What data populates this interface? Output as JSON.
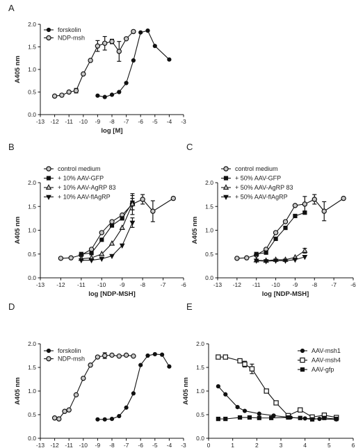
{
  "chart_data": [
    {
      "panel": "A",
      "type": "line",
      "xlabel": "log [M]",
      "ylabel": "A405 nm",
      "xlim": [
        -13,
        -3
      ],
      "ylim": [
        0,
        2.0
      ],
      "xticks": [
        "-13",
        "-12",
        "-11",
        "-10",
        "-9",
        "-8",
        "-7",
        "-6",
        "-5",
        "-4",
        "-3"
      ],
      "yticks": [
        "0.0",
        "0.5",
        "1.0",
        "1.5",
        "2.0"
      ],
      "legend_position": "top-left",
      "series": [
        {
          "name": "forskolin",
          "marker": "filled-circle",
          "x": [
            -9.0,
            -8.5,
            -8.0,
            -7.5,
            -7.0,
            -6.5,
            -6.0,
            -5.5,
            -5.0,
            -4.0
          ],
          "y": [
            0.42,
            0.39,
            0.44,
            0.5,
            0.7,
            1.2,
            1.82,
            1.86,
            1.52,
            1.22
          ],
          "err": [
            0,
            0,
            0,
            0,
            0,
            0,
            0,
            0,
            0,
            0
          ]
        },
        {
          "name": "NDP-msh",
          "marker": "open-circle",
          "x": [
            -12.0,
            -11.5,
            -11.0,
            -10.5,
            -10.0,
            -9.5,
            -9.0,
            -8.5,
            -8.0,
            -7.5,
            -7.0,
            -6.5
          ],
          "y": [
            0.41,
            0.43,
            0.5,
            0.53,
            0.9,
            1.2,
            1.52,
            1.58,
            1.62,
            1.4,
            1.68,
            1.84
          ],
          "err": [
            0,
            0,
            0,
            0.05,
            0,
            0,
            0.12,
            0.15,
            0.05,
            0.22,
            0,
            0
          ]
        }
      ]
    },
    {
      "panel": "B",
      "type": "line",
      "xlabel": "log [NDP-MSH]",
      "ylabel": "A405 nm",
      "xlim": [
        -13,
        -6
      ],
      "ylim": [
        0,
        2.0
      ],
      "xticks": [
        "-13",
        "-12",
        "-11",
        "-10",
        "-9",
        "-8",
        "-7",
        "-6"
      ],
      "yticks": [
        "0.0",
        "0.5",
        "1.0",
        "1.5",
        "2.0"
      ],
      "legend_position": "top-left",
      "series": [
        {
          "name": "control medium",
          "marker": "open-circle",
          "x": [
            -12.0,
            -11.5,
            -11.0,
            -10.5,
            -10.0,
            -9.5,
            -9.0,
            -8.5,
            -8.0,
            -7.5,
            -6.5
          ],
          "y": [
            0.41,
            0.42,
            0.48,
            0.6,
            0.95,
            1.18,
            1.32,
            1.55,
            1.65,
            1.4,
            1.67
          ],
          "err": [
            0,
            0,
            0,
            0,
            0,
            0,
            0,
            0.12,
            0.1,
            0.22,
            0
          ]
        },
        {
          "name": "+ 10% AAV-GFP",
          "marker": "filled-square",
          "x": [
            -11.0,
            -10.5,
            -10.0,
            -9.5,
            -9.0,
            -8.5
          ],
          "y": [
            0.5,
            0.52,
            0.8,
            1.1,
            1.25,
            1.58
          ],
          "err": [
            0,
            0,
            0,
            0,
            0,
            0.15
          ]
        },
        {
          "name": "+ 10% AAV-AgRP 83",
          "marker": "open-triangle",
          "x": [
            -11.0,
            -10.5,
            -10.0,
            -9.5,
            -9.0,
            -8.5
          ],
          "y": [
            0.4,
            0.42,
            0.5,
            0.72,
            1.05,
            1.55
          ],
          "err": [
            0,
            0,
            0,
            0,
            0,
            0.22
          ]
        },
        {
          "name": "+ 10% AAV-flAgRP",
          "marker": "filled-triangle-down",
          "x": [
            -11.0,
            -10.5,
            -10.0,
            -9.5,
            -9.0,
            -8.5
          ],
          "y": [
            0.37,
            0.37,
            0.4,
            0.46,
            0.68,
            1.16
          ],
          "err": [
            0,
            0,
            0,
            0,
            0,
            0.1
          ]
        }
      ]
    },
    {
      "panel": "C",
      "type": "line",
      "xlabel": "log [NDP-MSH]",
      "ylabel": "A405 nm",
      "xlim": [
        -13,
        -6
      ],
      "ylim": [
        0,
        2.0
      ],
      "xticks": [
        "-13",
        "-12",
        "-11",
        "-10",
        "-9",
        "-8",
        "-7",
        "-6"
      ],
      "yticks": [
        "0.0",
        "0.5",
        "1.0",
        "1.5",
        "2.0"
      ],
      "legend_position": "top-left",
      "series": [
        {
          "name": "control medium",
          "marker": "open-circle",
          "x": [
            -12.0,
            -11.5,
            -11.0,
            -10.5,
            -10.0,
            -9.5,
            -9.0,
            -8.5,
            -8.0,
            -7.5,
            -6.5
          ],
          "y": [
            0.41,
            0.42,
            0.48,
            0.6,
            0.95,
            1.18,
            1.52,
            1.55,
            1.65,
            1.4,
            1.67
          ],
          "err": [
            0,
            0,
            0,
            0,
            0,
            0,
            0,
            0.16,
            0.1,
            0.2,
            0
          ]
        },
        {
          "name": "+ 50% AAV-GFP",
          "marker": "filled-square",
          "x": [
            -11.0,
            -10.5,
            -10.0,
            -9.5,
            -9.0,
            -8.5
          ],
          "y": [
            0.5,
            0.53,
            0.82,
            1.05,
            1.3,
            1.37
          ],
          "err": [
            0,
            0,
            0,
            0,
            0,
            0
          ]
        },
        {
          "name": "+ 50% AAV-AgRP 83",
          "marker": "open-triangle",
          "x": [
            -11.0,
            -10.5,
            -10.0,
            -9.5,
            -9.0,
            -8.5
          ],
          "y": [
            0.37,
            0.36,
            0.38,
            0.38,
            0.43,
            0.57
          ],
          "err": [
            0,
            0,
            0,
            0,
            0,
            0.05
          ]
        },
        {
          "name": "+ 50% AAV-flAgRP",
          "marker": "filled-triangle-down",
          "x": [
            -11.0,
            -10.5,
            -10.0,
            -9.5,
            -9.0,
            -8.5
          ],
          "y": [
            0.36,
            0.35,
            0.36,
            0.36,
            0.38,
            0.44
          ],
          "err": [
            0,
            0,
            0,
            0,
            0,
            0
          ]
        }
      ]
    },
    {
      "panel": "D",
      "type": "line",
      "xlabel": "log [M]",
      "ylabel": "A405 nm",
      "xlim": [
        -13,
        -3
      ],
      "ylim": [
        0,
        2.0
      ],
      "xticks": [
        "-13",
        "-12",
        "-11",
        "-10",
        "-9",
        "-8",
        "-7",
        "-6",
        "-5",
        "-4",
        "-3"
      ],
      "yticks": [
        "0.0",
        "0.5",
        "1.0",
        "1.5",
        "2.0"
      ],
      "legend_position": "top-left",
      "series": [
        {
          "name": "forskolin",
          "marker": "filled-circle",
          "x": [
            -9.0,
            -8.5,
            -8.0,
            -7.5,
            -7.0,
            -6.5,
            -6.0,
            -5.5,
            -5.0,
            -4.5,
            -4.0
          ],
          "y": [
            0.4,
            0.4,
            0.41,
            0.47,
            0.65,
            0.95,
            1.55,
            1.75,
            1.78,
            1.77,
            1.52
          ],
          "err": [
            0,
            0,
            0,
            0,
            0,
            0,
            0,
            0,
            0,
            0,
            0
          ]
        },
        {
          "name": "NDP-msh",
          "marker": "open-circle",
          "x": [
            -12.0,
            -11.7,
            -11.3,
            -11.0,
            -10.5,
            -10.0,
            -9.5,
            -9.0,
            -8.5,
            -8.0,
            -7.5,
            -7.0,
            -6.5
          ],
          "y": [
            0.43,
            0.41,
            0.57,
            0.6,
            0.92,
            1.27,
            1.55,
            1.72,
            1.75,
            1.76,
            1.74,
            1.76,
            1.74
          ],
          "err": [
            0,
            0,
            0,
            0,
            0,
            0,
            0,
            0,
            0.06,
            0,
            0,
            0,
            0
          ]
        }
      ]
    },
    {
      "panel": "E",
      "type": "line",
      "xlabel": "log dilution",
      "ylabel": "A405 nm",
      "xlim": [
        0,
        6
      ],
      "ylim": [
        0,
        2.0
      ],
      "xticks": [
        "0",
        "1",
        "2",
        "3",
        "4",
        "5",
        "6"
      ],
      "yticks": [
        "0.0",
        "0.5",
        "1.0",
        "1.5",
        "2.0"
      ],
      "legend_position": "top-right",
      "series": [
        {
          "name": "AAV-msh1",
          "marker": "filled-circle",
          "x": [
            0.4,
            0.7,
            1.2,
            1.5,
            2.1,
            2.7,
            3.4,
            4.0,
            4.6,
            5.3
          ],
          "y": [
            1.1,
            0.93,
            0.66,
            0.58,
            0.52,
            0.48,
            0.44,
            0.42,
            0.41,
            0.4
          ],
          "err": [
            0,
            0,
            0,
            0,
            0,
            0,
            0,
            0,
            0,
            0
          ]
        },
        {
          "name": "AAV-msh4",
          "marker": "open-square",
          "x": [
            0.4,
            0.7,
            1.3,
            1.5,
            1.8,
            2.4,
            2.8,
            3.3,
            3.8,
            4.3,
            4.8,
            5.3
          ],
          "y": [
            1.72,
            1.72,
            1.64,
            1.57,
            1.47,
            1.0,
            0.75,
            0.48,
            0.6,
            0.45,
            0.49,
            0.44
          ],
          "err": [
            0,
            0,
            0,
            0.06,
            0.1,
            0,
            0,
            0,
            0,
            0,
            0,
            0
          ]
        },
        {
          "name": "AAV-gfp",
          "marker": "filled-square",
          "x": [
            0.4,
            0.7,
            1.3,
            1.7,
            2.1,
            2.6,
            3.3,
            3.8,
            4.3,
            4.8,
            5.3
          ],
          "y": [
            0.41,
            0.41,
            0.44,
            0.44,
            0.43,
            0.43,
            0.44,
            0.43,
            0.4,
            0.43,
            0.41
          ],
          "err": [
            0,
            0,
            0,
            0,
            0,
            0,
            0,
            0,
            0,
            0,
            0
          ]
        }
      ]
    }
  ]
}
